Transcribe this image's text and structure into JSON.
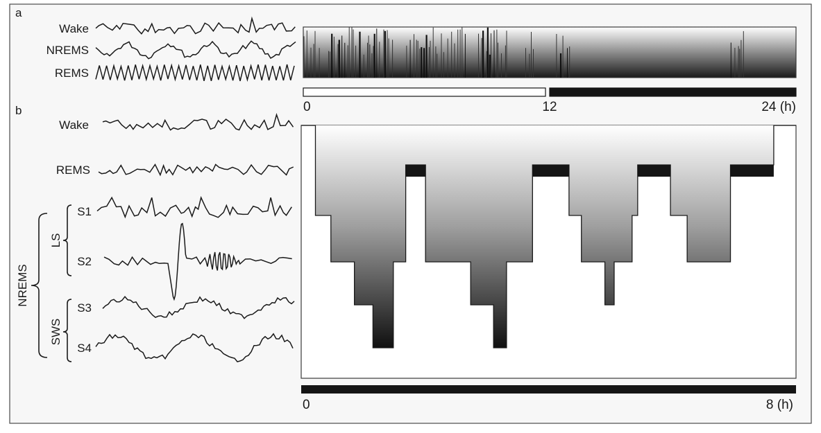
{
  "panel_a": {
    "letter": "a",
    "traces": [
      {
        "label": "Wake",
        "kind": "wake"
      },
      {
        "label": "NREMS",
        "kind": "nrem"
      },
      {
        "label": "REMS",
        "kind": "rem"
      }
    ],
    "axis": {
      "ticks": [
        {
          "value": 0,
          "label": "0"
        },
        {
          "value": 12,
          "label": "12"
        },
        {
          "value": 24,
          "label": "24 (h)"
        }
      ]
    },
    "light_dark": [
      {
        "phase": "light",
        "start": 0,
        "end": 12
      },
      {
        "phase": "dark",
        "start": 12,
        "end": 24
      }
    ],
    "activity_bursts_h": [
      [
        0.0,
        0.9
      ],
      [
        1.2,
        4.5
      ],
      [
        5.0,
        8.0
      ],
      [
        8.5,
        10.0
      ],
      [
        10.8,
        11.3
      ],
      [
        12.3,
        13.0
      ],
      [
        20.8,
        21.5
      ]
    ]
  },
  "panel_b": {
    "letter": "b",
    "traces": [
      {
        "label": "Wake",
        "kind": "wake"
      },
      {
        "label": "REMS",
        "kind": "remb"
      },
      {
        "label": "S1",
        "kind": "s1"
      },
      {
        "label": "S2",
        "kind": "s2"
      },
      {
        "label": "S3",
        "kind": "sws"
      },
      {
        "label": "S4",
        "kind": "sws2"
      }
    ],
    "groups": {
      "nrem": "NREMS",
      "light_sleep": "LS",
      "slow_wave_sleep": "SWS"
    },
    "axis": {
      "ticks": [
        {
          "value": 0,
          "label": "0"
        },
        {
          "value": 8,
          "label": "8 (h)"
        }
      ]
    }
  },
  "chart_data": {
    "type": "area",
    "x_unit": "h",
    "xlim": [
      0,
      8
    ],
    "stage_levels": [
      "Wake",
      "REMS",
      "S1",
      "S2",
      "S3",
      "S4"
    ],
    "hypnogram": [
      {
        "start": 0.0,
        "end": 0.23,
        "stage": "Wake"
      },
      {
        "start": 0.23,
        "end": 0.48,
        "stage": "S1"
      },
      {
        "start": 0.48,
        "end": 0.86,
        "stage": "S2"
      },
      {
        "start": 0.86,
        "end": 1.16,
        "stage": "S3"
      },
      {
        "start": 1.16,
        "end": 1.49,
        "stage": "S4"
      },
      {
        "start": 1.49,
        "end": 1.69,
        "stage": "S2"
      },
      {
        "start": 1.69,
        "end": 2.01,
        "stage": "REMS"
      },
      {
        "start": 2.01,
        "end": 2.74,
        "stage": "S2"
      },
      {
        "start": 2.74,
        "end": 3.11,
        "stage": "S3"
      },
      {
        "start": 3.11,
        "end": 3.32,
        "stage": "S4"
      },
      {
        "start": 3.32,
        "end": 3.74,
        "stage": "S2"
      },
      {
        "start": 3.74,
        "end": 4.33,
        "stage": "REMS"
      },
      {
        "start": 4.33,
        "end": 4.53,
        "stage": "S1"
      },
      {
        "start": 4.53,
        "end": 4.91,
        "stage": "S2"
      },
      {
        "start": 4.91,
        "end": 5.06,
        "stage": "S3"
      },
      {
        "start": 5.06,
        "end": 5.35,
        "stage": "S2"
      },
      {
        "start": 5.35,
        "end": 5.44,
        "stage": "S1"
      },
      {
        "start": 5.44,
        "end": 5.97,
        "stage": "REMS"
      },
      {
        "start": 5.97,
        "end": 6.24,
        "stage": "S1"
      },
      {
        "start": 6.24,
        "end": 6.94,
        "stage": "S2"
      },
      {
        "start": 6.94,
        "end": 7.64,
        "stage": "REMS"
      },
      {
        "start": 7.64,
        "end": 8.0,
        "stage": "Wake"
      }
    ]
  },
  "colors": {
    "border": "#4a4a4a",
    "trace": "#1a1a1a",
    "panel_bg": "#f7f7f7",
    "bar_dark": "#151515",
    "gradient_top": "#ffffff",
    "gradient_bottom": "#0f0f0f"
  }
}
